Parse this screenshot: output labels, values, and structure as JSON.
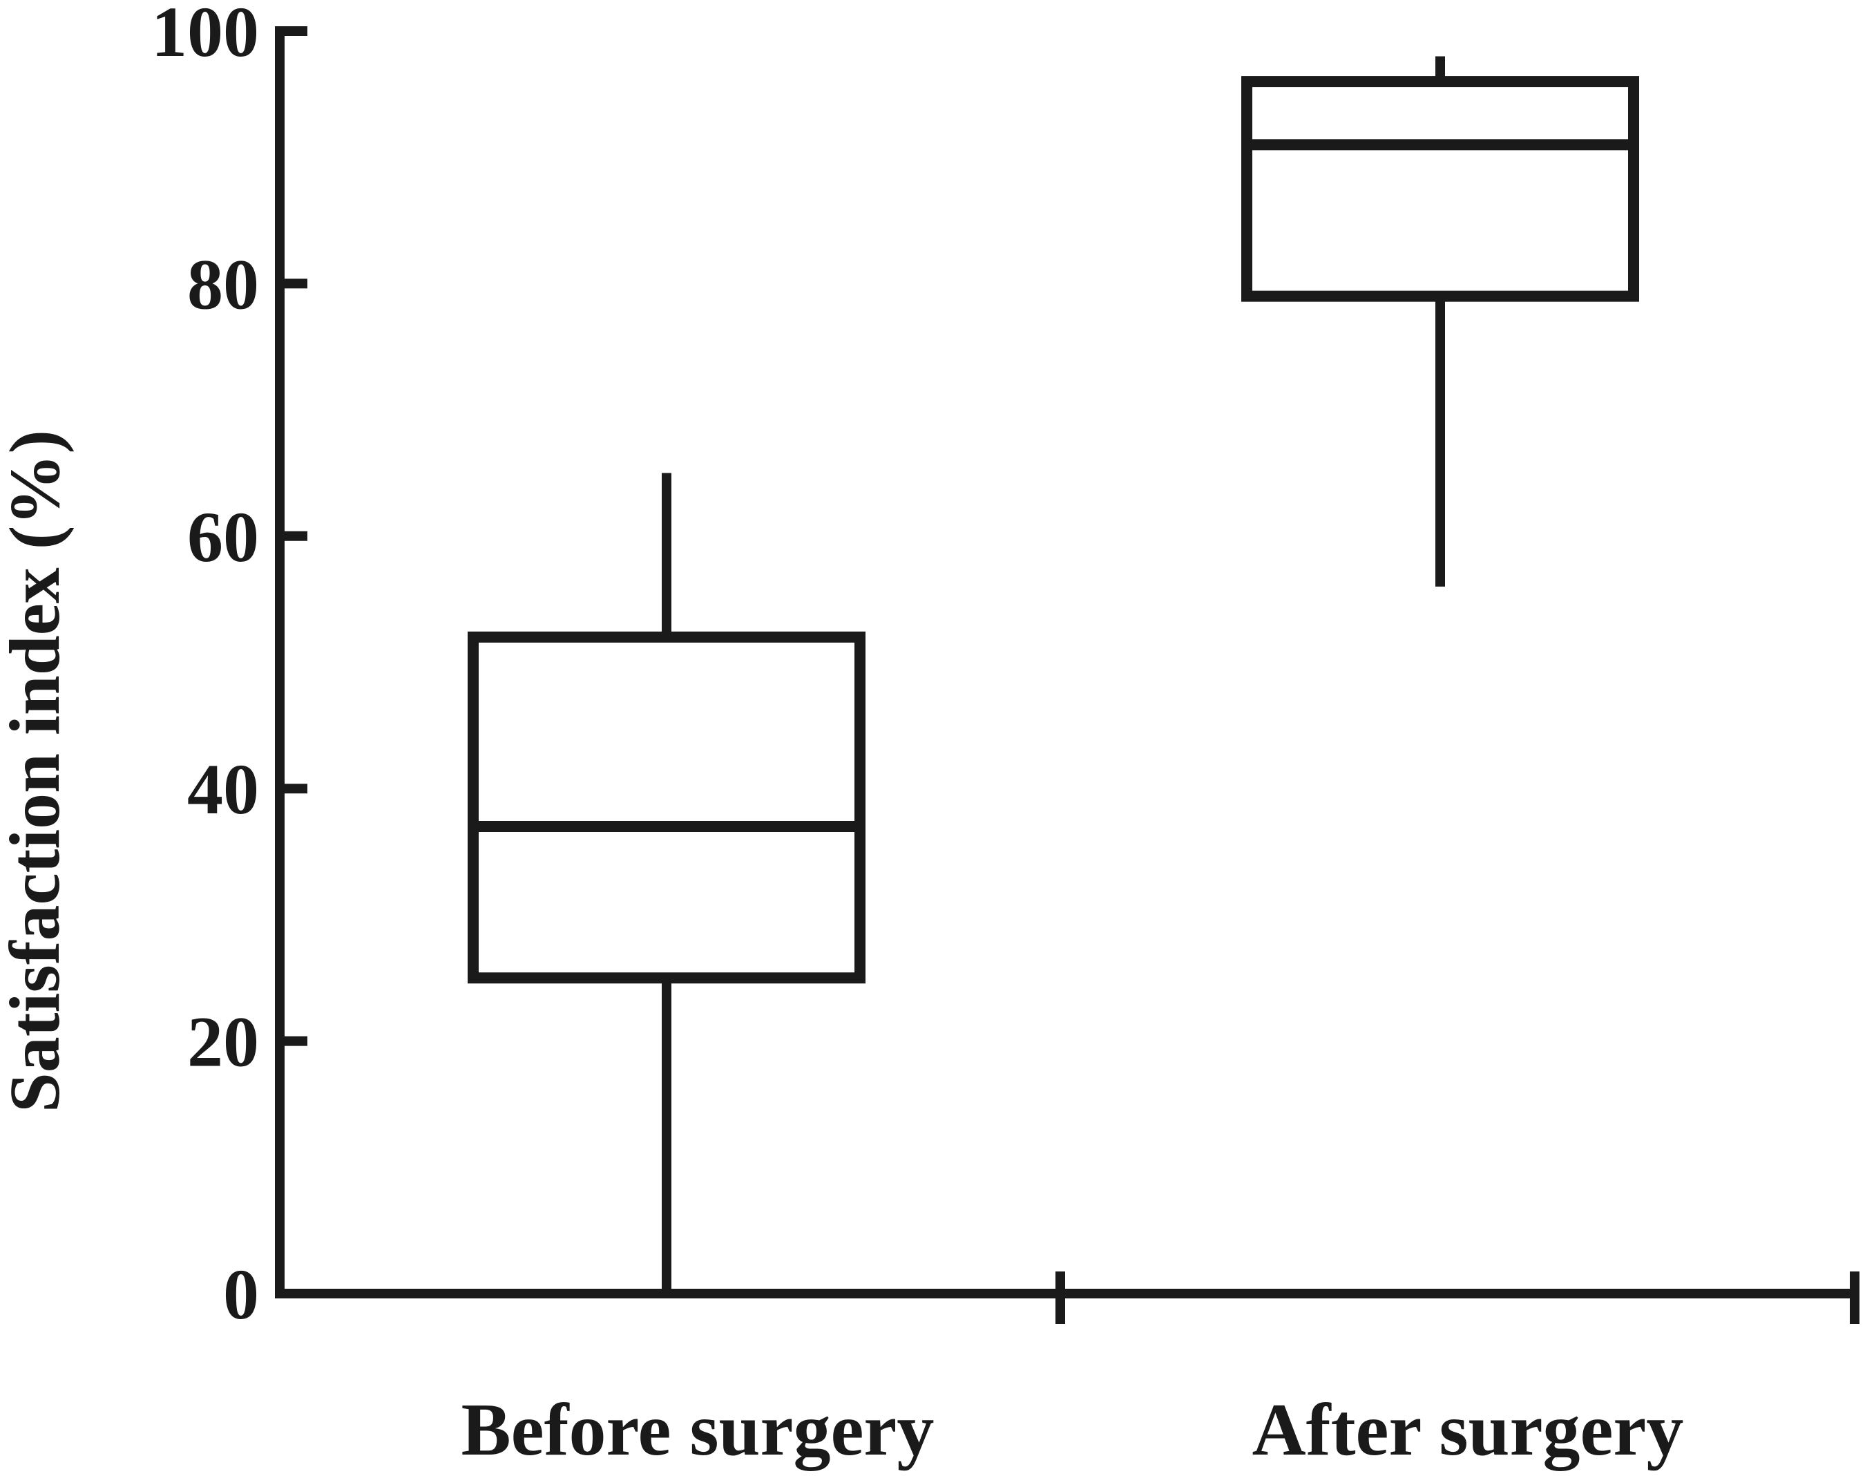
{
  "chart_data": {
    "type": "box",
    "title": "",
    "xlabel": "",
    "ylabel": "Satisfaction index (%)",
    "ylim": [
      0,
      100
    ],
    "yticks": [
      "0",
      "20",
      "40",
      "60",
      "80",
      "100"
    ],
    "categories": [
      "Before surgery",
      "After surgery"
    ],
    "boxes": [
      {
        "category": "Before surgery",
        "min": 0,
        "q1": 25,
        "median": 37,
        "q3": 52,
        "max": 65
      },
      {
        "category": "After surgery",
        "min": 56,
        "q1": 79,
        "median": 91,
        "q3": 96,
        "max": 98
      }
    ],
    "grid": false,
    "legend": "none"
  }
}
